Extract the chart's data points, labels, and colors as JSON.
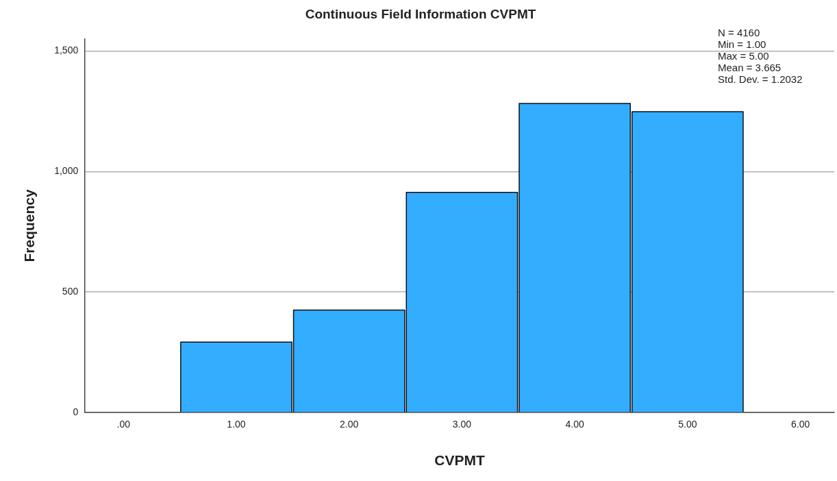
{
  "chart_data": {
    "type": "histogram",
    "title": "Continuous Field Information CVPMT",
    "xlabel": "CVPMT",
    "ylabel": "Frequency",
    "bins": [
      0.5,
      1.5,
      2.5,
      3.5,
      4.5,
      5.5
    ],
    "values": [
      292,
      425,
      913,
      1282,
      1248
    ],
    "color": "#33adff",
    "xlim": [
      -0.34,
      6.3
    ],
    "xticks": [
      {
        "value": 0,
        "label": ".00"
      },
      {
        "value": 1,
        "label": "1.00"
      },
      {
        "value": 2,
        "label": "2.00"
      },
      {
        "value": 3,
        "label": "3.00"
      },
      {
        "value": 4,
        "label": "4.00"
      },
      {
        "value": 5,
        "label": "5.00"
      },
      {
        "value": 6,
        "label": "6.00"
      }
    ],
    "ylim": [
      0,
      1550
    ],
    "yticks": [
      0,
      500,
      {
        "value": 1000,
        "label": "1,000"
      },
      {
        "value": 1500,
        "label": "1,500"
      }
    ],
    "grid": "y",
    "annotations": [
      "N = 4160",
      "Min = 1.00",
      "Max = 5.00",
      "Mean = 3.665",
      "Std. Dev. = 1.2032"
    ]
  }
}
